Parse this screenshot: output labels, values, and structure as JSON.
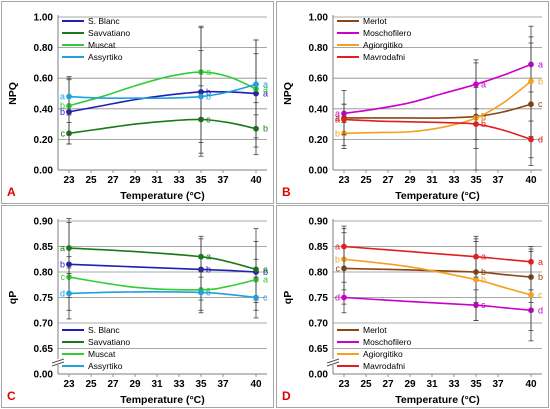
{
  "chart_data": [
    {
      "id": "A",
      "type": "line",
      "panel_letter": "A",
      "xlabel": "Temperature (°C)",
      "ylabel": "NPQ",
      "xlim": [
        22,
        41
      ],
      "ylim": [
        0,
        1
      ],
      "x_ticks": [
        23,
        25,
        27,
        29,
        31,
        33,
        35,
        37,
        40
      ],
      "y_ticks": [
        "0.00",
        "0.20",
        "0.40",
        "0.60",
        "0.80",
        "1.00"
      ],
      "y_tick_values": [
        0,
        0.2,
        0.4,
        0.6,
        0.8,
        1.0
      ],
      "axis_break": false,
      "legend_position": "top-left",
      "gridlines": true,
      "series": [
        {
          "name": "S. Blanc",
          "color": "#1f1fb4",
          "x": [
            23,
            35,
            40
          ],
          "y": [
            0.38,
            0.51,
            0.5
          ],
          "curve": [
            [
              23,
              0.38
            ],
            [
              26,
              0.42
            ],
            [
              29,
              0.46
            ],
            [
              32,
              0.49
            ],
            [
              35,
              0.51
            ],
            [
              37.5,
              0.51
            ],
            [
              40,
              0.5
            ]
          ],
          "err": [
            0.21,
            0.42,
            0.35
          ],
          "labels": [
            "b",
            "b",
            "a"
          ]
        },
        {
          "name": "Savvatiano",
          "color": "#1a7a1a",
          "x": [
            23,
            35,
            40
          ],
          "y": [
            0.24,
            0.33,
            0.27
          ],
          "curve": [
            [
              23,
              0.24
            ],
            [
              26,
              0.27
            ],
            [
              29,
              0.3
            ],
            [
              32,
              0.32
            ],
            [
              35,
              0.33
            ],
            [
              37.5,
              0.31
            ],
            [
              40,
              0.27
            ]
          ],
          "err": [
            0.07,
            0.22,
            0.17
          ],
          "labels": [
            "c",
            "c",
            "b"
          ]
        },
        {
          "name": "Muscat",
          "color": "#33cc33",
          "x": [
            23,
            35,
            40
          ],
          "y": [
            0.42,
            0.64,
            0.53
          ],
          "curve": [
            [
              23,
              0.42
            ],
            [
              26,
              0.48
            ],
            [
              29,
              0.55
            ],
            [
              32,
              0.61
            ],
            [
              35,
              0.64
            ],
            [
              37.5,
              0.61
            ],
            [
              40,
              0.53
            ]
          ],
          "err": [
            0.19,
            0.3,
            0.32
          ],
          "labels": [
            "b",
            "a",
            "a"
          ]
        },
        {
          "name": "Assyrtiko",
          "color": "#1fa0e0",
          "x": [
            23,
            35,
            40
          ],
          "y": [
            0.48,
            0.48,
            0.56
          ],
          "curve": [
            [
              23,
              0.48
            ],
            [
              26,
              0.47
            ],
            [
              29,
              0.47
            ],
            [
              32,
              0.47
            ],
            [
              35,
              0.48
            ],
            [
              37.5,
              0.51
            ],
            [
              40,
              0.56
            ]
          ],
          "err": [
            0.12,
            0.3,
            0.2
          ],
          "labels": [
            "a",
            "b",
            "a"
          ]
        }
      ]
    },
    {
      "id": "B",
      "type": "line",
      "panel_letter": "B",
      "xlabel": "Temperature (°C)",
      "ylabel": "NPQ",
      "xlim": [
        22,
        41
      ],
      "ylim": [
        0,
        1
      ],
      "x_ticks": [
        23,
        25,
        27,
        29,
        31,
        33,
        35,
        37,
        40
      ],
      "y_ticks": [
        "0.00",
        "0.20",
        "0.40",
        "0.60",
        "0.80",
        "1.00"
      ],
      "y_tick_values": [
        0,
        0.2,
        0.4,
        0.6,
        0.8,
        1.0
      ],
      "axis_break": false,
      "legend_position": "top-left",
      "gridlines": true,
      "series": [
        {
          "name": "Merlot",
          "color": "#8b4513",
          "x": [
            23,
            35,
            40
          ],
          "y": [
            0.34,
            0.35,
            0.43
          ],
          "curve": [
            [
              23,
              0.34
            ],
            [
              26,
              0.34
            ],
            [
              29,
              0.34
            ],
            [
              32,
              0.34
            ],
            [
              35,
              0.35
            ],
            [
              37.5,
              0.38
            ],
            [
              40,
              0.43
            ]
          ],
          "err": [
            0.18,
            0.35,
            0.4
          ],
          "labels": [
            "a",
            "b",
            "c"
          ]
        },
        {
          "name": "Moschofilero",
          "color": "#cc00cc",
          "x": [
            23,
            35,
            40
          ],
          "y": [
            0.37,
            0.56,
            0.69
          ],
          "curve": [
            [
              23,
              0.37
            ],
            [
              26,
              0.4
            ],
            [
              29,
              0.44
            ],
            [
              32,
              0.5
            ],
            [
              35,
              0.56
            ],
            [
              37.5,
              0.62
            ],
            [
              40,
              0.69
            ]
          ],
          "err": [
            0.06,
            0.16,
            0.18
          ],
          "labels": [
            "a",
            "a",
            "a"
          ]
        },
        {
          "name": "Agiorgitiko",
          "color": "#f5a020",
          "x": [
            23,
            35,
            40
          ],
          "y": [
            0.24,
            0.34,
            0.58
          ],
          "curve": [
            [
              23,
              0.24
            ],
            [
              26,
              0.245
            ],
            [
              29,
              0.25
            ],
            [
              32,
              0.28
            ],
            [
              35,
              0.34
            ],
            [
              37.5,
              0.44
            ],
            [
              40,
              0.58
            ]
          ],
          "err": [
            0.1,
            0.2,
            0.36
          ],
          "labels": [
            "b",
            "b",
            "b"
          ]
        },
        {
          "name": "Mavrodafni",
          "color": "#e02020",
          "x": [
            23,
            35,
            40
          ],
          "y": [
            0.33,
            0.3,
            0.2
          ],
          "curve": [
            [
              23,
              0.33
            ],
            [
              26,
              0.32
            ],
            [
              29,
              0.315
            ],
            [
              32,
              0.31
            ],
            [
              35,
              0.3
            ],
            [
              37.5,
              0.26
            ],
            [
              40,
              0.2
            ]
          ],
          "err": [
            0.1,
            0.1,
            0.12
          ],
          "labels": [
            "a",
            "b",
            "d"
          ]
        }
      ]
    },
    {
      "id": "C",
      "type": "line",
      "panel_letter": "C",
      "xlabel": "Temperature (°C)",
      "ylabel": "qP",
      "xlim": [
        22,
        41
      ],
      "ylim": [
        0.6,
        0.9
      ],
      "x_ticks": [
        23,
        25,
        27,
        29,
        31,
        33,
        35,
        37,
        40
      ],
      "y_ticks": [
        "0.00",
        "0.65",
        "0.70",
        "0.75",
        "0.80",
        "0.85",
        "0.90"
      ],
      "y_tick_values": [
        0.6,
        0.65,
        0.7,
        0.75,
        0.8,
        0.85,
        0.9
      ],
      "axis_break": true,
      "legend_position": "bottom-left",
      "gridlines": true,
      "series": [
        {
          "name": "S. Blanc",
          "color": "#1f1fb4",
          "x": [
            23,
            35,
            40
          ],
          "y": [
            0.815,
            0.805,
            0.8
          ],
          "curve": [
            [
              23,
              0.815
            ],
            [
              29,
              0.81
            ],
            [
              35,
              0.805
            ],
            [
              37.5,
              0.803
            ],
            [
              40,
              0.8
            ]
          ],
          "err": [
            0.09,
            0.06,
            0.06
          ],
          "labels": [
            "b",
            "b",
            "b"
          ]
        },
        {
          "name": "Savvatiano",
          "color": "#1a7a1a",
          "x": [
            23,
            35,
            40
          ],
          "y": [
            0.847,
            0.83,
            0.805
          ],
          "curve": [
            [
              23,
              0.847
            ],
            [
              29,
              0.84
            ],
            [
              35,
              0.83
            ],
            [
              37.5,
              0.82
            ],
            [
              40,
              0.805
            ]
          ],
          "err": [
            0.05,
            0.04,
            0.08
          ],
          "labels": [
            "a",
            "a",
            "a"
          ]
        },
        {
          "name": "Muscat",
          "color": "#33cc33",
          "x": [
            23,
            35,
            40
          ],
          "y": [
            0.79,
            0.765,
            0.785
          ],
          "curve": [
            [
              23,
              0.79
            ],
            [
              29,
              0.77
            ],
            [
              35,
              0.765
            ],
            [
              37.5,
              0.772
            ],
            [
              40,
              0.785
            ]
          ],
          "err": [
            0.04,
            0.04,
            0.04
          ],
          "labels": [
            "c",
            "c",
            "a"
          ]
        },
        {
          "name": "Assyrtiko",
          "color": "#1fa0e0",
          "x": [
            23,
            35,
            40
          ],
          "y": [
            0.758,
            0.76,
            0.75
          ],
          "curve": [
            [
              23,
              0.758
            ],
            [
              29,
              0.761
            ],
            [
              35,
              0.76
            ],
            [
              37.5,
              0.756
            ],
            [
              40,
              0.75
            ]
          ],
          "err": [
            0.05,
            0.04,
            0.04
          ],
          "labels": [
            "d",
            "c",
            "c"
          ]
        }
      ]
    },
    {
      "id": "D",
      "type": "line",
      "panel_letter": "D",
      "xlabel": "Temperature (°C)",
      "ylabel": "qP",
      "xlim": [
        22,
        41
      ],
      "ylim": [
        0.6,
        0.9
      ],
      "x_ticks": [
        23,
        25,
        27,
        29,
        31,
        33,
        35,
        37,
        40
      ],
      "y_ticks": [
        "0.00",
        "0.65",
        "0.70",
        "0.75",
        "0.80",
        "0.85",
        "0.90"
      ],
      "y_tick_values": [
        0.6,
        0.65,
        0.7,
        0.75,
        0.8,
        0.85,
        0.9
      ],
      "axis_break": true,
      "legend_position": "bottom-left",
      "gridlines": true,
      "series": [
        {
          "name": "Merlot",
          "color": "#8b4513",
          "x": [
            23,
            35,
            40
          ],
          "y": [
            0.807,
            0.8,
            0.79
          ],
          "curve": [
            [
              23,
              0.807
            ],
            [
              29,
              0.804
            ],
            [
              35,
              0.8
            ],
            [
              37.5,
              0.795
            ],
            [
              40,
              0.79
            ]
          ],
          "err": [
            0.07,
            0.06,
            0.05
          ],
          "labels": [
            "c",
            "b",
            "b"
          ]
        },
        {
          "name": "Moschofilero",
          "color": "#cc00cc",
          "x": [
            23,
            35,
            40
          ],
          "y": [
            0.75,
            0.735,
            0.725
          ],
          "curve": [
            [
              23,
              0.75
            ],
            [
              29,
              0.742
            ],
            [
              35,
              0.735
            ],
            [
              37.5,
              0.73
            ],
            [
              40,
              0.725
            ]
          ],
          "err": [
            0.03,
            0.03,
            0.04
          ],
          "labels": [
            "d",
            "c",
            "d"
          ]
        },
        {
          "name": "Agiorgitiko",
          "color": "#f5a020",
          "x": [
            23,
            35,
            40
          ],
          "y": [
            0.825,
            0.785,
            0.755
          ],
          "curve": [
            [
              23,
              0.825
            ],
            [
              29,
              0.81
            ],
            [
              35,
              0.785
            ],
            [
              37.5,
              0.77
            ],
            [
              40,
              0.755
            ]
          ],
          "err": [
            0.06,
            0.08,
            0.09
          ],
          "labels": [
            "b",
            "b",
            "c"
          ]
        },
        {
          "name": "Mavrodafni",
          "color": "#e02020",
          "x": [
            23,
            35,
            40
          ],
          "y": [
            0.85,
            0.83,
            0.82
          ],
          "curve": [
            [
              23,
              0.85
            ],
            [
              29,
              0.84
            ],
            [
              35,
              0.83
            ],
            [
              37.5,
              0.825
            ],
            [
              40,
              0.82
            ]
          ],
          "err": [
            0.04,
            0.04,
            0.03
          ],
          "labels": [
            "a",
            "a",
            "a"
          ]
        }
      ]
    }
  ]
}
